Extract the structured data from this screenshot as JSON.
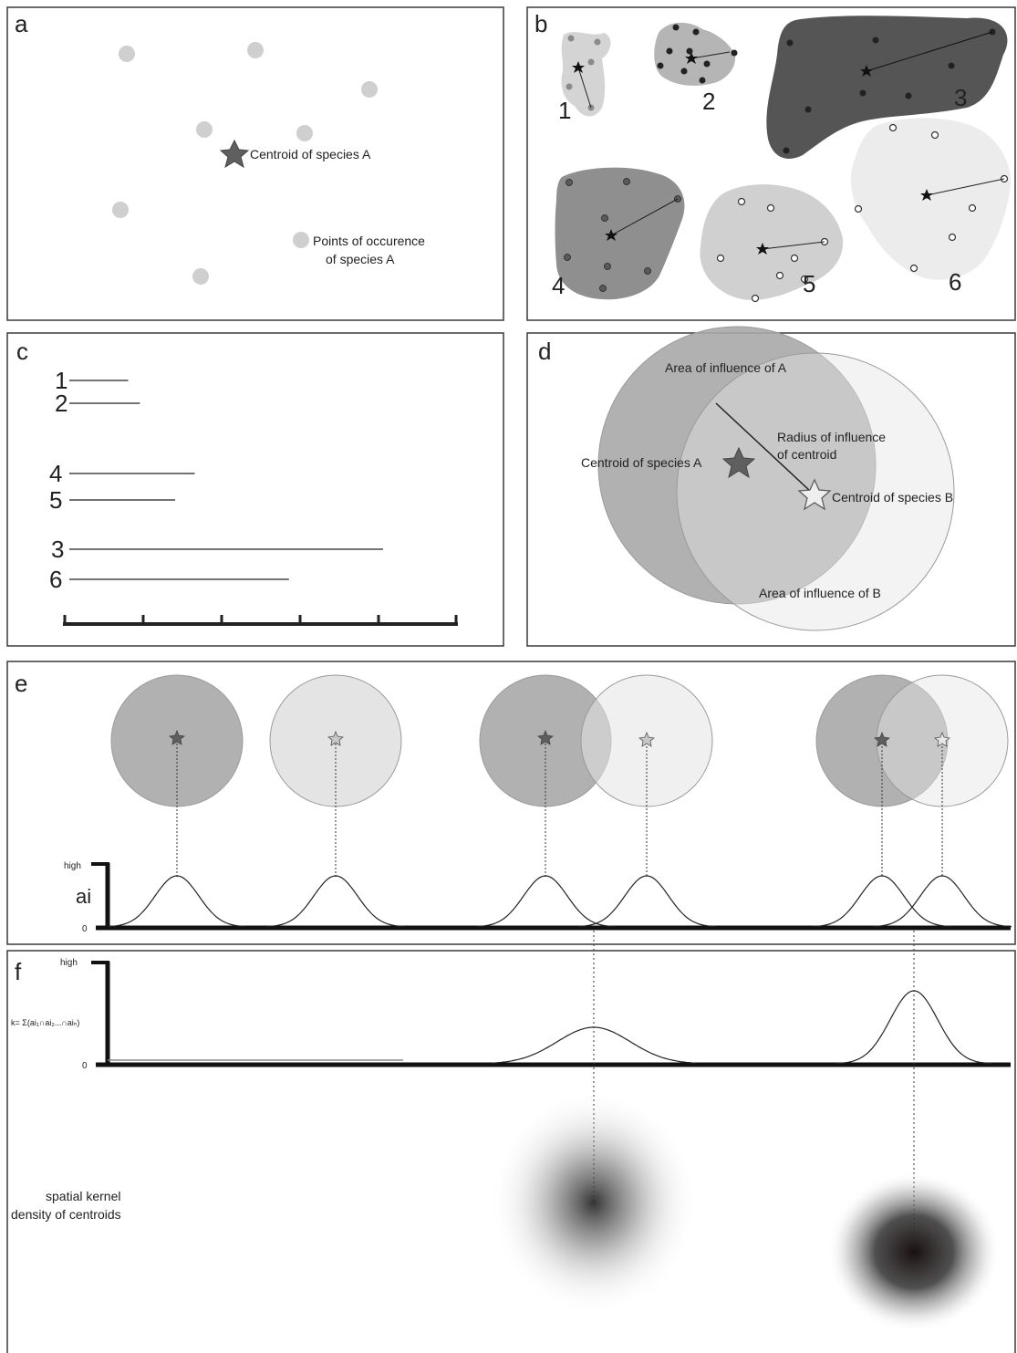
{
  "panels": {
    "a": {
      "letter": "a",
      "centroid_label": "Centroid of species A",
      "points_label_line1": "Points of occurence",
      "points_label_line2": "of species A"
    },
    "b": {
      "letter": "b",
      "ranges": [
        "1",
        "2",
        "3",
        "4",
        "5",
        "6"
      ]
    },
    "c": {
      "letter": "c",
      "bars": [
        {
          "label": "1",
          "length": 0.75
        },
        {
          "label": "2",
          "length": 0.9
        },
        {
          "label": "4",
          "length": 1.6
        },
        {
          "label": "5",
          "length": 1.35
        },
        {
          "label": "3",
          "length": 4.0
        },
        {
          "label": "6",
          "length": 2.8
        }
      ],
      "axis_ticks": 5
    },
    "d": {
      "letter": "d",
      "area_a_label": "Area of influence of A",
      "radius_label_line1": "Radius of influence",
      "radius_label_line2": "of centroid",
      "centroid_a_label": "Centroid of species A",
      "centroid_b_label": "Centroid of species B",
      "area_b_label": "Area of influence of B"
    },
    "e": {
      "letter": "e",
      "y_high": "high",
      "y_zero": "0",
      "y_label": "ai"
    },
    "f": {
      "letter": "f",
      "y_high": "high",
      "y_zero": "0",
      "k_label": "k= Σ(ai₁∩ai₂...∩aiₙ)",
      "kernel_label_line1": "spatial kernel",
      "kernel_label_line2": "density of centroids"
    }
  },
  "colors": {
    "dark_circle": "#a9a9a9",
    "light_circle": "#e4e4e4",
    "occurrence_point": "#cfcfcf",
    "dark_star": "#5f5f5f",
    "light_star": "#e0e0e0"
  }
}
